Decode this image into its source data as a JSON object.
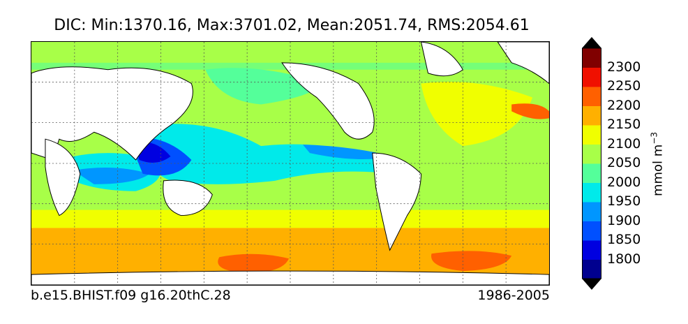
{
  "title": "DIC: Min:1370.16, Max:3701.02, Mean:2051.74, RMS:2054.61",
  "footer": {
    "case_name": "b.e15.BHIST.f09 g16.20thC.28",
    "period": "1986-2005"
  },
  "colorbar": {
    "label": "mmol m",
    "label_exponent": "−3",
    "ticks": [
      "1800",
      "1850",
      "1900",
      "1950",
      "2000",
      "2050",
      "2100",
      "2150",
      "2200",
      "2250",
      "2300"
    ],
    "level_colors": [
      "#00008f",
      "#0000e0",
      "#0050ff",
      "#0096ff",
      "#00eaea",
      "#54ff9a",
      "#a8ff48",
      "#f0ff00",
      "#ffb000",
      "#ff6000",
      "#f01000",
      "#800000"
    ]
  },
  "map": {
    "colors": {
      "land": "#ffffff",
      "ocean_low_lat": "#a8ff48",
      "southern_ocean": "#ffb000",
      "grid": "#555555"
    }
  }
}
